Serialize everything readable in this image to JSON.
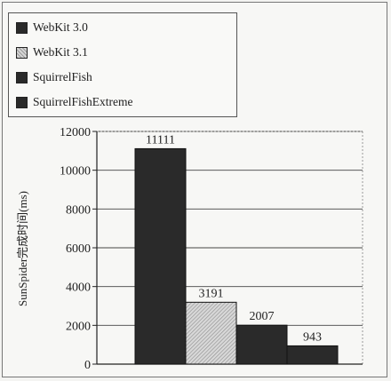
{
  "chart_data": {
    "type": "bar",
    "ylabel": "SunSpider完成时间(ms)",
    "xlabel": "",
    "ylim": [
      0,
      12000
    ],
    "yticks": [
      0,
      2000,
      4000,
      6000,
      8000,
      10000,
      12000
    ],
    "grid": true,
    "legend_position": "top-left",
    "series": [
      {
        "name": "WebKit 3.0",
        "value": 11111,
        "label": "11111",
        "color": "#2a2a2a",
        "pattern": "solid"
      },
      {
        "name": "WebKit 3.1",
        "value": 3191,
        "label": "3191",
        "color": "#c4c4c4",
        "pattern": "hatched"
      },
      {
        "name": "SquirrelFish",
        "value": 2007,
        "label": "2007",
        "color": "#2a2a2a",
        "pattern": "solid"
      },
      {
        "name": "SquirrelFishExtreme",
        "value": 943,
        "label": "943",
        "color": "#2a2a2a",
        "pattern": "solid"
      }
    ]
  }
}
